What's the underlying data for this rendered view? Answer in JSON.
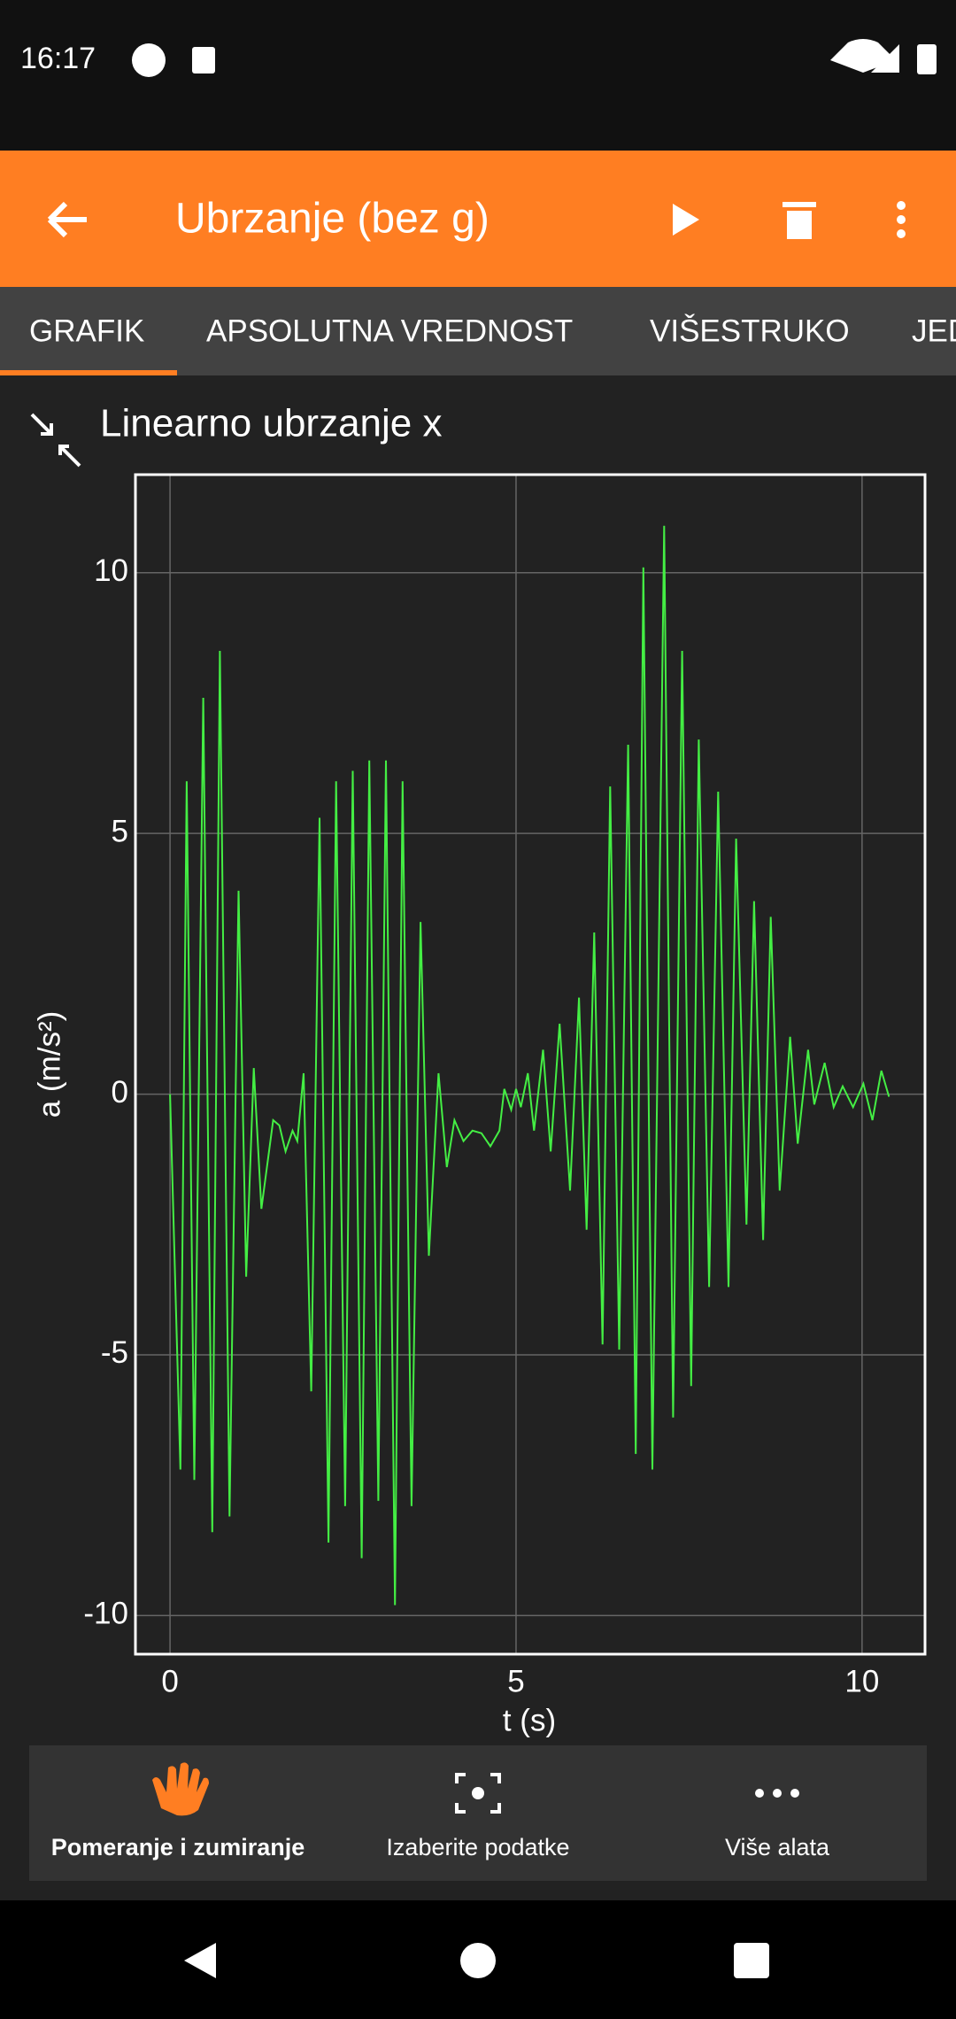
{
  "status_bar": {
    "time": "16:17"
  },
  "app_bar": {
    "title": "Ubrzanje (bez g)"
  },
  "tabs": [
    "GRAFIK",
    "APSOLUTNA VREDNOST",
    "VIŠESTRUKO",
    "JEDNOSTAVNO"
  ],
  "chart_data": {
    "type": "line",
    "title": "Linearno ubrzanje x",
    "x_label": "t (s)",
    "y_label": "a (m/s²)",
    "color": "#44ee44",
    "grid": true,
    "xlim": [
      -0.5,
      10.91
    ],
    "ylim": [
      -10.74,
      11.88
    ],
    "xticks": [
      0,
      5,
      10
    ],
    "yticks": [
      -10,
      -5,
      0,
      5,
      10
    ],
    "x": [
      0,
      0.15,
      0.24,
      0.35,
      0.48,
      0.61,
      0.72,
      0.86,
      0.99,
      1.1,
      1.21,
      1.32,
      1.49,
      1.58,
      1.67,
      1.77,
      1.84,
      1.93,
      2.04,
      2.16,
      2.29,
      2.4,
      2.53,
      2.64,
      2.77,
      2.88,
      3.01,
      3.12,
      3.25,
      3.36,
      3.49,
      3.62,
      3.74,
      3.88,
      4.0,
      4.11,
      4.24,
      4.37,
      4.5,
      4.63,
      4.76,
      4.83,
      4.93,
      5.0,
      5.07,
      5.17,
      5.26,
      5.39,
      5.5,
      5.63,
      5.78,
      5.91,
      6.02,
      6.13,
      6.25,
      6.36,
      6.49,
      6.62,
      6.73,
      6.84,
      6.97,
      7.14,
      7.27,
      7.4,
      7.53,
      7.64,
      7.79,
      7.92,
      8.07,
      8.18,
      8.33,
      8.44,
      8.57,
      8.68,
      8.81,
      8.96,
      9.07,
      9.22,
      9.31,
      9.46,
      9.59,
      9.72,
      9.87,
      10.02,
      10.15,
      10.28,
      10.39
    ],
    "values": [
      0,
      -7.2,
      6.0,
      -7.4,
      7.6,
      -8.4,
      8.5,
      -8.1,
      3.9,
      -3.5,
      0.5,
      -2.2,
      -0.5,
      -0.6,
      -1.1,
      -0.7,
      -0.9,
      0.4,
      -5.7,
      5.3,
      -8.6,
      6.0,
      -7.9,
      6.2,
      -8.9,
      6.4,
      -7.8,
      6.4,
      -9.8,
      6.0,
      -7.9,
      3.3,
      -3.1,
      0.4,
      -1.4,
      -0.5,
      -0.9,
      -0.7,
      -0.75,
      -1.0,
      -0.7,
      0.1,
      -0.3,
      0.1,
      -0.25,
      0.4,
      -0.7,
      0.85,
      -1.1,
      1.35,
      -1.85,
      1.85,
      -2.6,
      3.1,
      -4.8,
      5.9,
      -4.9,
      6.7,
      -6.9,
      10.1,
      -7.2,
      10.9,
      -6.2,
      8.5,
      -5.6,
      6.8,
      -3.7,
      5.8,
      -3.7,
      4.9,
      -2.5,
      3.7,
      -2.8,
      3.4,
      -1.85,
      1.1,
      -0.95,
      0.85,
      -0.2,
      0.6,
      -0.25,
      0.15,
      -0.25,
      0.2,
      -0.5,
      0.45,
      -0.05
    ]
  },
  "toolbar": [
    "Pomeranje i zumiranje",
    "Izaberite podatke",
    "Više alata"
  ]
}
